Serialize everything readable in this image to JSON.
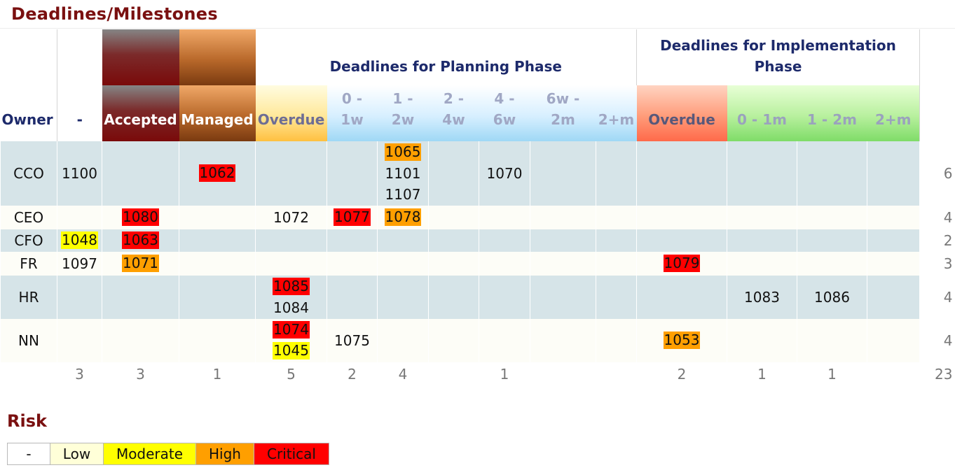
{
  "title": "Deadlines/Milestones",
  "headers": {
    "planning_group": "Deadlines for Planning Phase",
    "implementation_group": "Deadlines for Implementation Phase",
    "columns": [
      "Owner",
      "-",
      "Accepted",
      "Managed",
      "Overdue",
      "0 - 1w",
      "1 - 2w",
      "2 - 4w",
      "4 - 6w",
      "6w - 2m",
      "2+m",
      "Overdue",
      "0 - 1m",
      "1 - 2m",
      "2+m"
    ]
  },
  "rows": [
    {
      "owner": "CCO",
      "total": "6",
      "cells": {
        "dash": [
          {
            "id": "1100",
            "risk": "none"
          }
        ],
        "managed": [
          {
            "id": "1062",
            "risk": "critical"
          }
        ],
        "p_1_2w": [
          {
            "id": "1065",
            "risk": "high"
          },
          {
            "id": "1101",
            "risk": "none"
          },
          {
            "id": "1107",
            "risk": "none"
          }
        ],
        "p_4_6w": [
          {
            "id": "1070",
            "risk": "none"
          }
        ]
      }
    },
    {
      "owner": "CEO",
      "total": "4",
      "cells": {
        "accepted": [
          {
            "id": "1080",
            "risk": "critical"
          }
        ],
        "p_overdue": [
          {
            "id": "1072",
            "risk": "none"
          }
        ],
        "p_0_1w": [
          {
            "id": "1077",
            "risk": "critical"
          }
        ],
        "p_1_2w": [
          {
            "id": "1078",
            "risk": "high"
          }
        ]
      }
    },
    {
      "owner": "CFO",
      "total": "2",
      "cells": {
        "dash": [
          {
            "id": "1048",
            "risk": "moderate"
          }
        ],
        "accepted": [
          {
            "id": "1063",
            "risk": "critical"
          }
        ]
      }
    },
    {
      "owner": "FR",
      "total": "3",
      "cells": {
        "dash": [
          {
            "id": "1097",
            "risk": "none"
          }
        ],
        "accepted": [
          {
            "id": "1071",
            "risk": "high"
          }
        ],
        "i_overdue": [
          {
            "id": "1079",
            "risk": "critical"
          }
        ]
      }
    },
    {
      "owner": "HR",
      "total": "4",
      "cells": {
        "p_overdue": [
          {
            "id": "1085",
            "risk": "critical"
          },
          {
            "id": "1084",
            "risk": "none"
          }
        ],
        "i_0_1m": [
          {
            "id": "1083",
            "risk": "none"
          }
        ],
        "i_1_2m": [
          {
            "id": "1086",
            "risk": "none"
          }
        ]
      }
    },
    {
      "owner": "NN",
      "total": "4",
      "cells": {
        "p_overdue": [
          {
            "id": "1074",
            "risk": "critical"
          },
          {
            "id": "1045",
            "risk": "moderate"
          }
        ],
        "p_0_1w": [
          {
            "id": "1075",
            "risk": "none"
          }
        ],
        "i_overdue": [
          {
            "id": "1053",
            "risk": "high"
          }
        ]
      }
    }
  ],
  "column_totals": [
    "",
    "3",
    "3",
    "1",
    "5",
    "2",
    "4",
    "",
    "1",
    "",
    "",
    "2",
    "1",
    "1",
    "",
    "23"
  ],
  "risk_legend": {
    "title": "Risk",
    "items": [
      {
        "label": "-",
        "color": "#ffffff"
      },
      {
        "label": "Low",
        "color": "#ffffd8"
      },
      {
        "label": "Moderate",
        "color": "#ffff00"
      },
      {
        "label": "High",
        "color": "#ff9f00"
      },
      {
        "label": "Critical",
        "color": "#ff0000"
      }
    ]
  },
  "risk_colors": {
    "none": "",
    "low": "#ffffd8",
    "moderate": "#ffff00",
    "high": "#ff9f00",
    "critical": "#ff0000"
  }
}
